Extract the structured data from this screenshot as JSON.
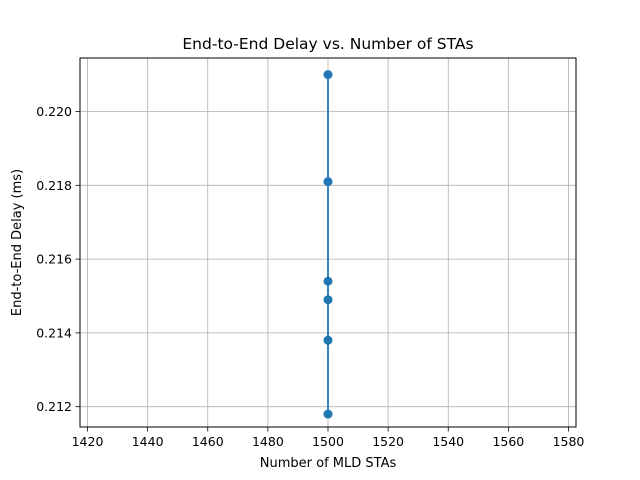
{
  "chart_data": {
    "type": "line",
    "title": "End-to-End Delay vs. Number of STAs",
    "xlabel": "Number of MLD STAs",
    "ylabel": "End-to-End Delay (ms)",
    "xlim": [
      1417.5,
      1582.5
    ],
    "ylim": [
      0.21145,
      0.22145
    ],
    "xticks": [
      1420,
      1440,
      1460,
      1480,
      1500,
      1520,
      1540,
      1560,
      1580
    ],
    "xtick_labels": [
      "1420",
      "1440",
      "1460",
      "1480",
      "1500",
      "1520",
      "1540",
      "1560",
      "1580"
    ],
    "yticks": [
      0.212,
      0.214,
      0.216,
      0.218,
      0.22
    ],
    "ytick_labels": [
      "0.212",
      "0.214",
      "0.216",
      "0.218",
      "0.220"
    ],
    "grid": true,
    "series": [
      {
        "x": [
          1500,
          1500,
          1500,
          1500,
          1500,
          1500
        ],
        "y": [
          0.221,
          0.2181,
          0.2154,
          0.2149,
          0.2138,
          0.2118
        ],
        "color": "#1f77b4",
        "marker": "circle"
      }
    ]
  }
}
